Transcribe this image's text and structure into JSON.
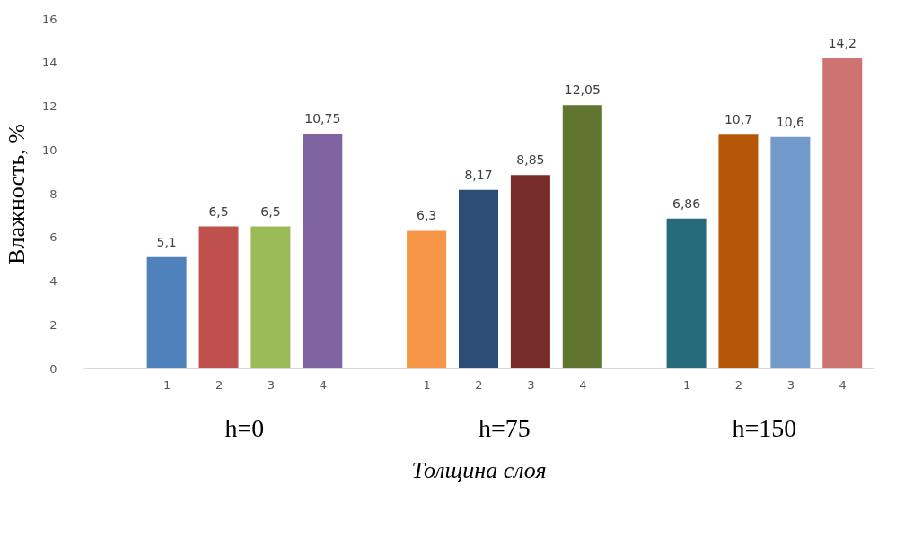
{
  "chart_data": {
    "type": "bar",
    "xlabel": "Толщина слоя",
    "ylabel": "Влажность, %",
    "categories": [
      "1",
      "2",
      "3",
      "4",
      "1",
      "2",
      "3",
      "4",
      "1",
      "2",
      "3",
      "4"
    ],
    "values": [
      5.1,
      6.5,
      6.5,
      10.75,
      6.3,
      8.17,
      8.85,
      12.05,
      6.86,
      10.7,
      10.6,
      14.2
    ],
    "colors": [
      "#4f81bd",
      "#c0504d",
      "#9bbb59",
      "#8064a2",
      "#f79646",
      "#2c4d75",
      "#772c2a",
      "#5f7530",
      "#276a7c",
      "#b65708",
      "#729aca",
      "#cd7371"
    ],
    "value_labels": [
      "5,1",
      "6,5",
      "6,5",
      "10,75",
      "6,3",
      "8,17",
      "8,85",
      "12,05",
      "6,86",
      "10,7",
      "10,6",
      "14,2"
    ],
    "ylim": [
      0,
      16
    ],
    "yticks": [
      0,
      2,
      4,
      6,
      8,
      10,
      12,
      14,
      16
    ],
    "grid": false,
    "legend": false,
    "annotations": [
      "h=0",
      "h=75",
      "h=150"
    ]
  }
}
